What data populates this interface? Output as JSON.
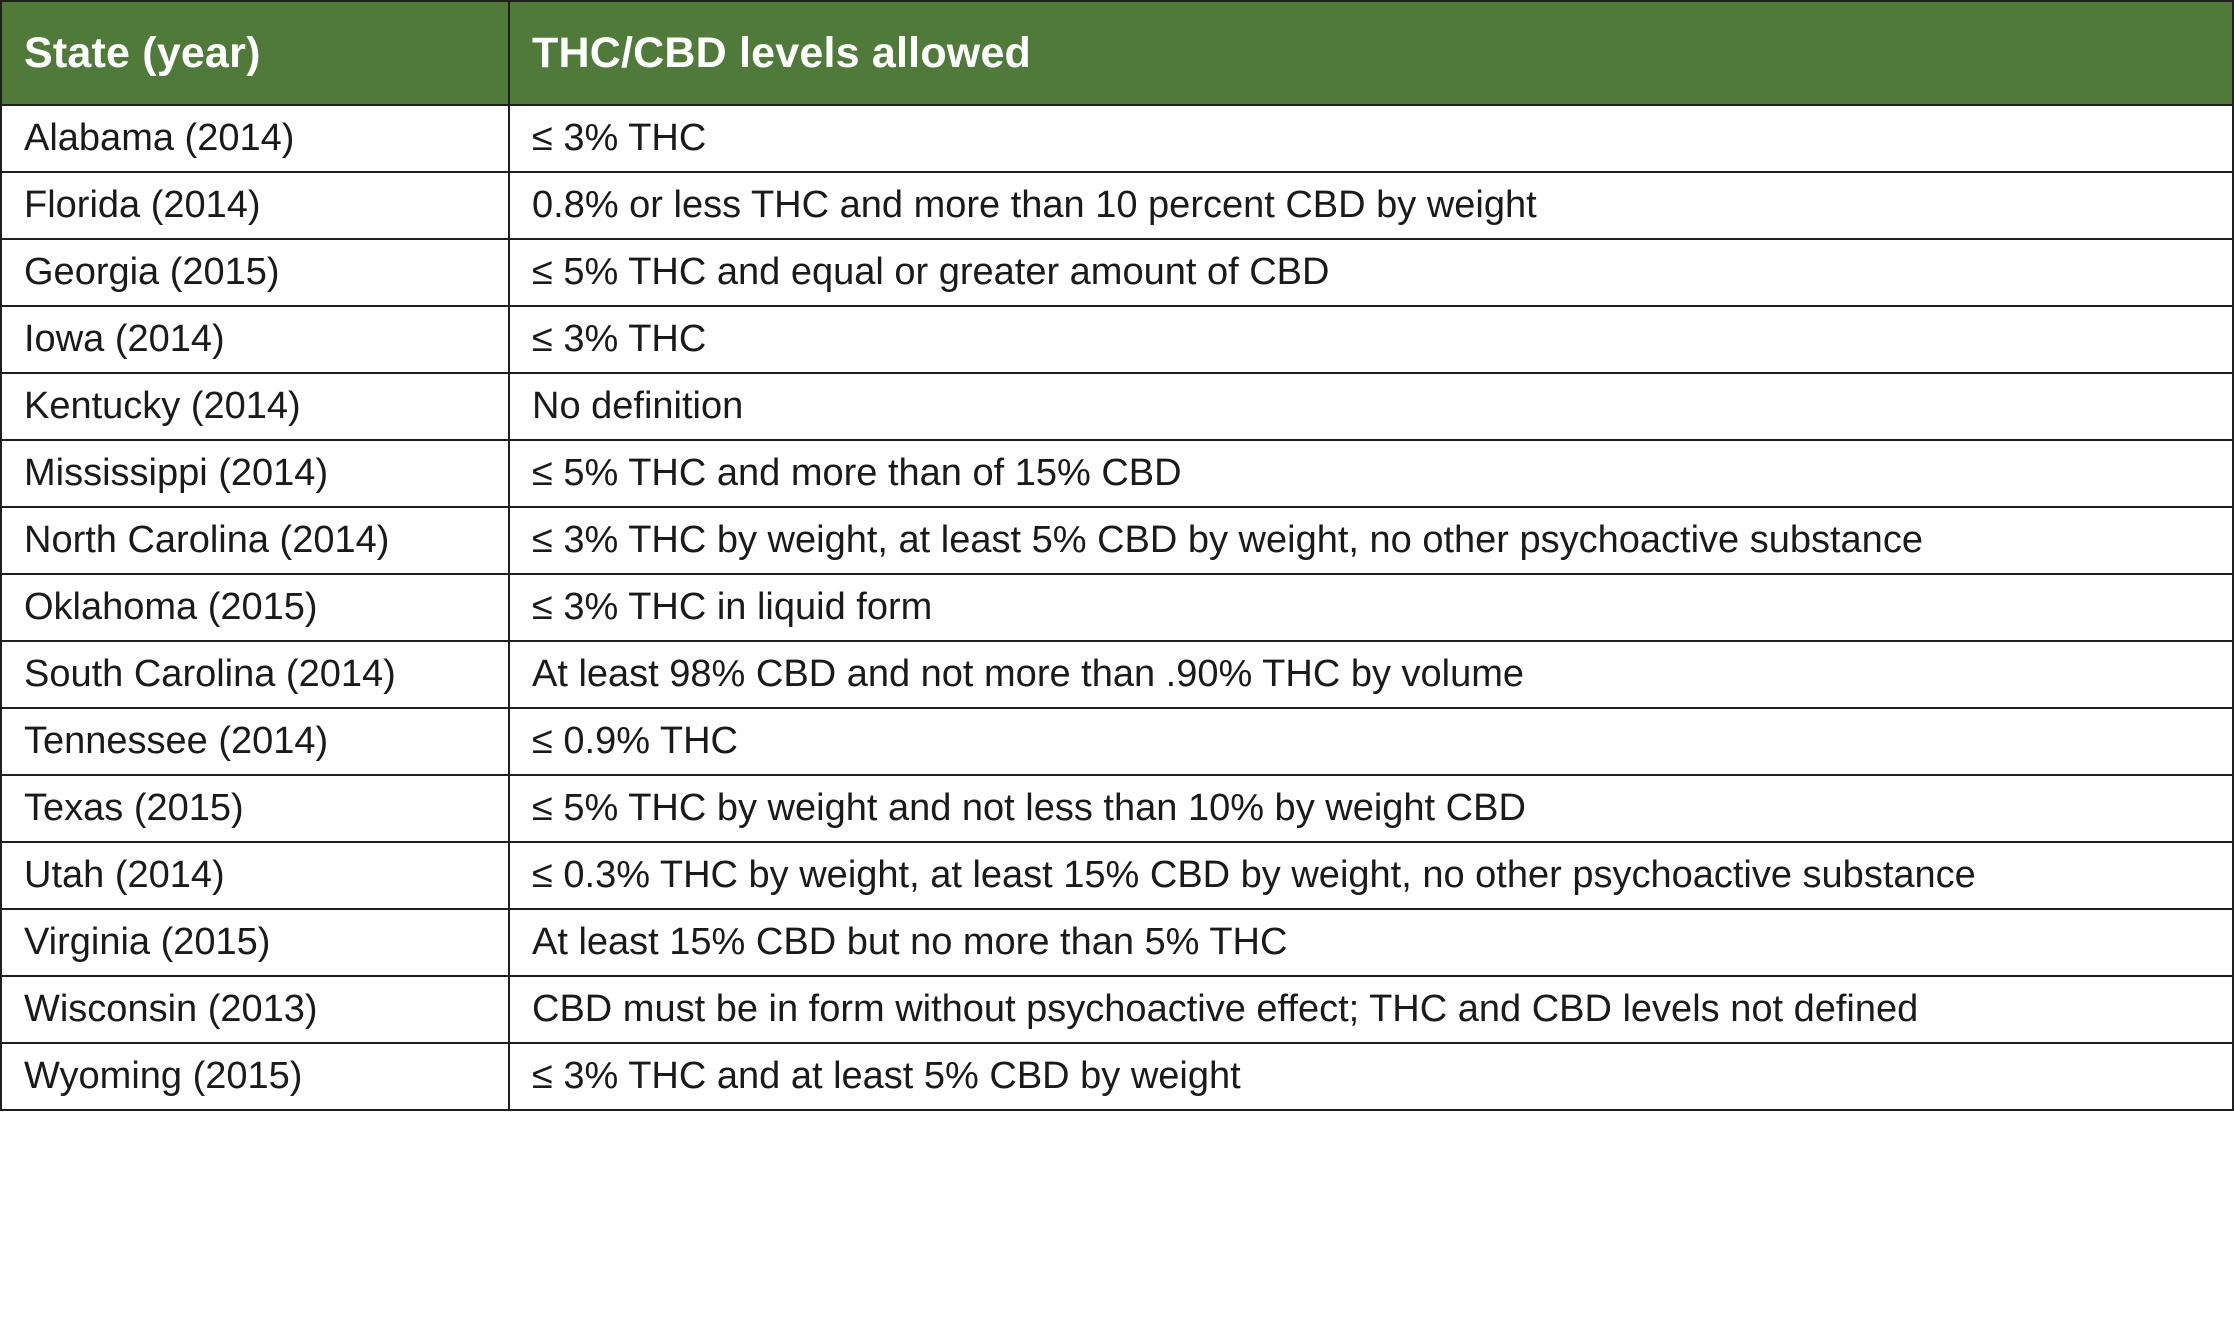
{
  "table": {
    "headers": [
      "State (year)",
      "THC/CBD levels allowed"
    ],
    "rows": [
      [
        "Alabama (2014)",
        "≤ 3% THC"
      ],
      [
        "Florida (2014)",
        "0.8% or less THC and more than 10 percent CBD by weight"
      ],
      [
        "Georgia (2015)",
        "≤  5% THC and equal or greater amount of CBD"
      ],
      [
        "Iowa (2014)",
        "≤  3% THC"
      ],
      [
        "Kentucky (2014)",
        "No definition"
      ],
      [
        "Mississippi (2014)",
        "≤  5% THC and more than of 15% CBD"
      ],
      [
        "North Carolina (2014)",
        "≤  3% THC by weight, at least 5% CBD by weight, no other psychoactive substance"
      ],
      [
        "Oklahoma (2015)",
        "≤  3% THC in liquid form"
      ],
      [
        "South Carolina (2014)",
        "At least 98% CBD and not more than .90% THC by volume"
      ],
      [
        "Tennessee (2014)",
        "≤  0.9% THC"
      ],
      [
        "Texas (2015)",
        "≤  5% THC by weight and not less than 10% by weight CBD"
      ],
      [
        "Utah (2014)",
        "≤  0.3% THC by weight, at least 15% CBD by weight, no other psychoactive substance"
      ],
      [
        "Virginia (2015)",
        "At least 15% CBD but no more than 5% THC"
      ],
      [
        "Wisconsin (2013)",
        "CBD must be in form without psychoactive effect; THC and CBD levels not defined"
      ],
      [
        "Wyoming (2015)",
        "≤  3% THC and at least 5% CBD by weight"
      ]
    ]
  },
  "colors": {
    "header_bg": "#507a39",
    "header_text": "#ffffff",
    "border": "#1f1f1f"
  }
}
